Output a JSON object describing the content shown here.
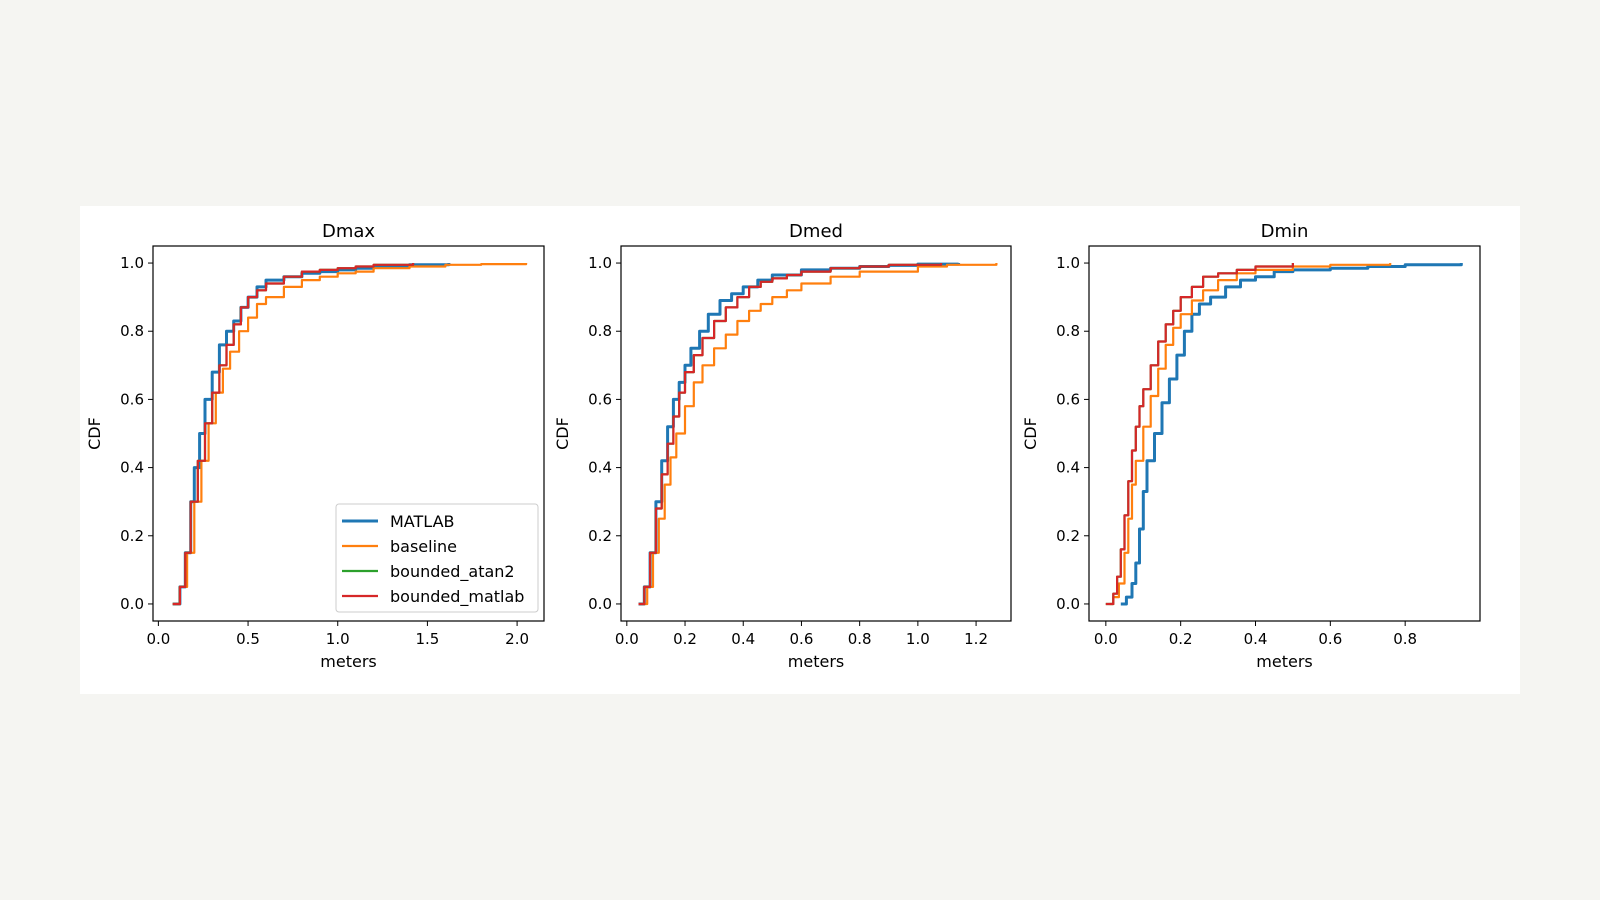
{
  "colors": {
    "MATLAB": "#1f77b4",
    "baseline": "#ff7f0e",
    "bounded_atan2": "#2ca02c",
    "bounded_matlab": "#d62728"
  },
  "legend": {
    "placement": "lower right",
    "entries": [
      "MATLAB",
      "baseline",
      "bounded_atan2",
      "bounded_matlab"
    ]
  },
  "chart_data": [
    {
      "type": "line",
      "title": "Dmax",
      "xlabel": "meters",
      "ylabel": "CDF",
      "xlim": [
        -0.03,
        2.15
      ],
      "ylim": [
        -0.05,
        1.05
      ],
      "xticks": [
        "0.0",
        "0.5",
        "1.0",
        "1.5",
        "2.0"
      ],
      "yticks": [
        "0.0",
        "0.2",
        "0.4",
        "0.6",
        "0.8",
        "1.0"
      ],
      "grid": false,
      "show_legend": true,
      "series": [
        {
          "name": "MATLAB",
          "x": [
            0.08,
            0.12,
            0.15,
            0.18,
            0.2,
            0.23,
            0.26,
            0.3,
            0.34,
            0.38,
            0.42,
            0.46,
            0.5,
            0.55,
            0.6,
            0.7,
            0.8,
            0.9,
            1.0,
            1.1,
            1.2,
            1.4,
            1.62
          ],
          "y": [
            0,
            0.05,
            0.15,
            0.3,
            0.4,
            0.5,
            0.6,
            0.68,
            0.76,
            0.8,
            0.83,
            0.87,
            0.9,
            0.93,
            0.95,
            0.96,
            0.97,
            0.975,
            0.98,
            0.985,
            0.99,
            0.995,
            1.0
          ]
        },
        {
          "name": "baseline",
          "x": [
            0.08,
            0.12,
            0.16,
            0.2,
            0.24,
            0.28,
            0.32,
            0.36,
            0.4,
            0.45,
            0.5,
            0.55,
            0.6,
            0.7,
            0.8,
            0.9,
            1.0,
            1.1,
            1.2,
            1.4,
            1.6,
            1.8,
            2.05
          ],
          "y": [
            0,
            0.05,
            0.15,
            0.3,
            0.42,
            0.53,
            0.62,
            0.69,
            0.74,
            0.8,
            0.84,
            0.88,
            0.9,
            0.93,
            0.95,
            0.96,
            0.97,
            0.975,
            0.985,
            0.99,
            0.995,
            0.997,
            1.0
          ]
        },
        {
          "name": "bounded_atan2",
          "x": [
            0.08,
            0.12,
            0.15,
            0.18,
            0.22,
            0.26,
            0.3,
            0.34,
            0.38,
            0.42,
            0.46,
            0.5,
            0.55,
            0.6,
            0.7,
            0.8,
            0.9,
            1.0,
            1.1,
            1.2,
            1.42
          ],
          "y": [
            0,
            0.05,
            0.15,
            0.3,
            0.42,
            0.53,
            0.62,
            0.7,
            0.76,
            0.82,
            0.87,
            0.9,
            0.92,
            0.94,
            0.96,
            0.975,
            0.98,
            0.985,
            0.99,
            0.995,
            1.0
          ]
        },
        {
          "name": "bounded_matlab",
          "x": [
            0.08,
            0.12,
            0.15,
            0.18,
            0.22,
            0.26,
            0.3,
            0.34,
            0.38,
            0.42,
            0.46,
            0.5,
            0.55,
            0.6,
            0.7,
            0.8,
            0.9,
            1.0,
            1.1,
            1.2,
            1.42
          ],
          "y": [
            0,
            0.05,
            0.15,
            0.3,
            0.42,
            0.53,
            0.62,
            0.7,
            0.76,
            0.82,
            0.87,
            0.9,
            0.92,
            0.94,
            0.96,
            0.975,
            0.98,
            0.985,
            0.99,
            0.995,
            1.0
          ]
        }
      ]
    },
    {
      "type": "line",
      "title": "Dmed",
      "xlabel": "meters",
      "ylabel": "CDF",
      "xlim": [
        -0.02,
        1.32
      ],
      "ylim": [
        -0.05,
        1.05
      ],
      "xticks": [
        "0.0",
        "0.2",
        "0.4",
        "0.6",
        "0.8",
        "1.0",
        "1.2"
      ],
      "yticks": [
        "0.0",
        "0.2",
        "0.4",
        "0.6",
        "0.8",
        "1.0"
      ],
      "grid": false,
      "show_legend": false,
      "series": [
        {
          "name": "MATLAB",
          "x": [
            0.04,
            0.06,
            0.08,
            0.1,
            0.12,
            0.14,
            0.16,
            0.18,
            0.2,
            0.22,
            0.25,
            0.28,
            0.32,
            0.36,
            0.4,
            0.45,
            0.5,
            0.6,
            0.7,
            0.8,
            0.9,
            1.0,
            1.14
          ],
          "y": [
            0,
            0.05,
            0.15,
            0.3,
            0.42,
            0.52,
            0.6,
            0.65,
            0.7,
            0.75,
            0.8,
            0.85,
            0.89,
            0.91,
            0.93,
            0.95,
            0.965,
            0.98,
            0.985,
            0.99,
            0.993,
            0.997,
            1.0
          ]
        },
        {
          "name": "baseline",
          "x": [
            0.05,
            0.07,
            0.09,
            0.11,
            0.13,
            0.15,
            0.17,
            0.2,
            0.23,
            0.26,
            0.3,
            0.34,
            0.38,
            0.42,
            0.46,
            0.5,
            0.55,
            0.6,
            0.7,
            0.8,
            1.0,
            1.1,
            1.27
          ],
          "y": [
            0,
            0.05,
            0.15,
            0.25,
            0.35,
            0.43,
            0.5,
            0.58,
            0.65,
            0.7,
            0.75,
            0.79,
            0.83,
            0.86,
            0.88,
            0.9,
            0.92,
            0.94,
            0.96,
            0.975,
            0.99,
            0.995,
            1.0
          ]
        },
        {
          "name": "bounded_atan2",
          "x": [
            0.04,
            0.06,
            0.08,
            0.1,
            0.12,
            0.14,
            0.16,
            0.18,
            0.2,
            0.23,
            0.26,
            0.3,
            0.34,
            0.38,
            0.42,
            0.46,
            0.5,
            0.55,
            0.6,
            0.7,
            0.8,
            0.9,
            1.08
          ],
          "y": [
            0,
            0.05,
            0.15,
            0.28,
            0.38,
            0.47,
            0.55,
            0.62,
            0.68,
            0.73,
            0.78,
            0.83,
            0.87,
            0.9,
            0.93,
            0.945,
            0.955,
            0.965,
            0.975,
            0.985,
            0.99,
            0.995,
            1.0
          ]
        },
        {
          "name": "bounded_matlab",
          "x": [
            0.04,
            0.06,
            0.08,
            0.1,
            0.12,
            0.14,
            0.16,
            0.18,
            0.2,
            0.23,
            0.26,
            0.3,
            0.34,
            0.38,
            0.42,
            0.46,
            0.5,
            0.55,
            0.6,
            0.7,
            0.8,
            0.9,
            1.08
          ],
          "y": [
            0,
            0.05,
            0.15,
            0.28,
            0.38,
            0.47,
            0.55,
            0.62,
            0.68,
            0.73,
            0.78,
            0.83,
            0.87,
            0.9,
            0.93,
            0.945,
            0.955,
            0.965,
            0.975,
            0.985,
            0.99,
            0.995,
            1.0
          ]
        }
      ]
    },
    {
      "type": "line",
      "title": "Dmin",
      "xlabel": "meters",
      "ylabel": "CDF",
      "xlim": [
        -0.045,
        1.0
      ],
      "ylim": [
        -0.05,
        1.05
      ],
      "xticks": [
        "0.0",
        "0.2",
        "0.4",
        "0.6",
        "0.8"
      ],
      "yticks": [
        "0.0",
        "0.2",
        "0.4",
        "0.6",
        "0.8",
        "1.0"
      ],
      "grid": false,
      "show_legend": false,
      "series": [
        {
          "name": "MATLAB",
          "x": [
            0.04,
            0.055,
            0.07,
            0.08,
            0.09,
            0.1,
            0.11,
            0.13,
            0.15,
            0.17,
            0.19,
            0.21,
            0.23,
            0.25,
            0.28,
            0.32,
            0.36,
            0.4,
            0.45,
            0.5,
            0.6,
            0.7,
            0.8,
            0.95
          ],
          "y": [
            0,
            0.02,
            0.06,
            0.12,
            0.22,
            0.33,
            0.42,
            0.5,
            0.59,
            0.66,
            0.73,
            0.8,
            0.85,
            0.88,
            0.9,
            0.93,
            0.95,
            0.96,
            0.975,
            0.98,
            0.985,
            0.99,
            0.995,
            1.0
          ]
        },
        {
          "name": "baseline",
          "x": [
            0.01,
            0.02,
            0.035,
            0.05,
            0.06,
            0.07,
            0.08,
            0.1,
            0.12,
            0.14,
            0.16,
            0.18,
            0.2,
            0.23,
            0.26,
            0.3,
            0.35,
            0.4,
            0.5,
            0.6,
            0.76
          ],
          "y": [
            0,
            0.02,
            0.06,
            0.15,
            0.25,
            0.35,
            0.42,
            0.52,
            0.61,
            0.69,
            0.76,
            0.81,
            0.85,
            0.89,
            0.92,
            0.95,
            0.97,
            0.98,
            0.99,
            0.995,
            1.0
          ]
        },
        {
          "name": "bounded_atan2",
          "x": [
            0.0,
            0.02,
            0.03,
            0.04,
            0.05,
            0.06,
            0.07,
            0.08,
            0.09,
            0.1,
            0.12,
            0.14,
            0.16,
            0.18,
            0.2,
            0.23,
            0.26,
            0.3,
            0.35,
            0.4,
            0.5
          ],
          "y": [
            0,
            0.03,
            0.08,
            0.16,
            0.26,
            0.36,
            0.45,
            0.52,
            0.58,
            0.63,
            0.7,
            0.77,
            0.82,
            0.86,
            0.9,
            0.93,
            0.96,
            0.97,
            0.98,
            0.99,
            1.0
          ]
        },
        {
          "name": "bounded_matlab",
          "x": [
            0.0,
            0.02,
            0.03,
            0.04,
            0.05,
            0.06,
            0.07,
            0.08,
            0.09,
            0.1,
            0.12,
            0.14,
            0.16,
            0.18,
            0.2,
            0.23,
            0.26,
            0.3,
            0.35,
            0.4,
            0.5
          ],
          "y": [
            0,
            0.03,
            0.08,
            0.16,
            0.26,
            0.36,
            0.45,
            0.52,
            0.58,
            0.63,
            0.7,
            0.77,
            0.82,
            0.86,
            0.9,
            0.93,
            0.96,
            0.97,
            0.98,
            0.99,
            1.0
          ]
        }
      ]
    }
  ]
}
